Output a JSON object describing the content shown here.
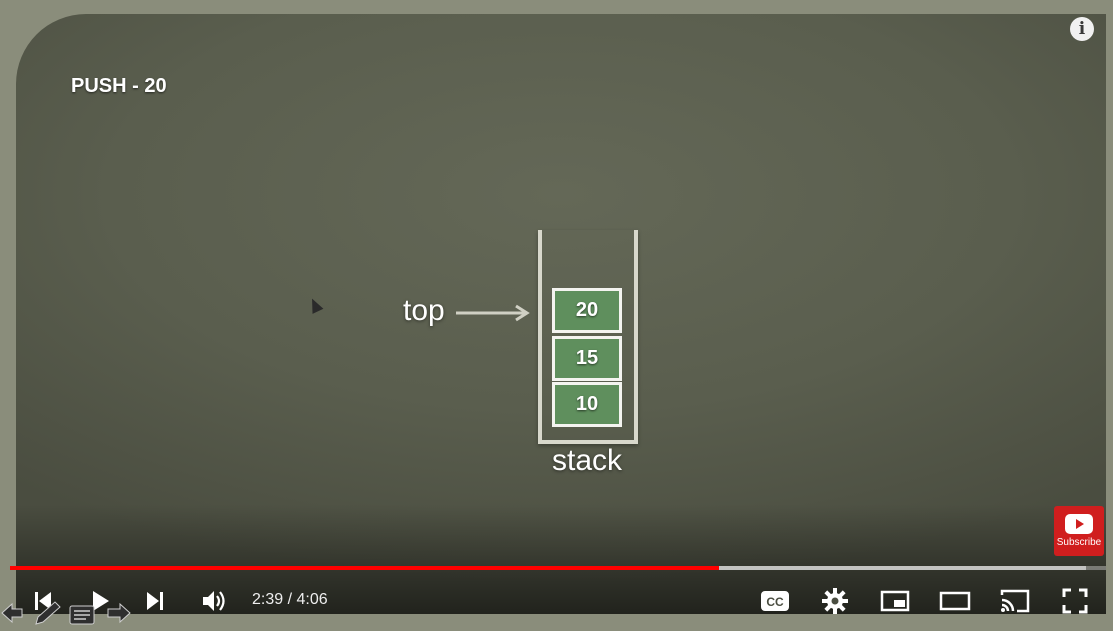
{
  "slide": {
    "title": "PUSH - 20",
    "top_label": "top",
    "stack_label": "stack",
    "stack_items": [
      "20",
      "15",
      "10"
    ]
  },
  "player": {
    "time_display": "2:39 / 4:06",
    "progress_fraction": 0.647,
    "buffered_fraction": 0.982,
    "subscribe_label": "Subscribe",
    "info_label": "i",
    "cc_label": "CC",
    "icons": {
      "prev": "previous-icon",
      "play": "play-icon",
      "next": "next-icon",
      "volume": "volume-icon",
      "cc": "captions-icon",
      "settings": "gear-icon",
      "miniplayer": "miniplayer-icon",
      "theater": "theater-mode-icon",
      "cast": "cast-icon",
      "fullscreen": "fullscreen-icon"
    },
    "accent_color": "#ff0000"
  }
}
